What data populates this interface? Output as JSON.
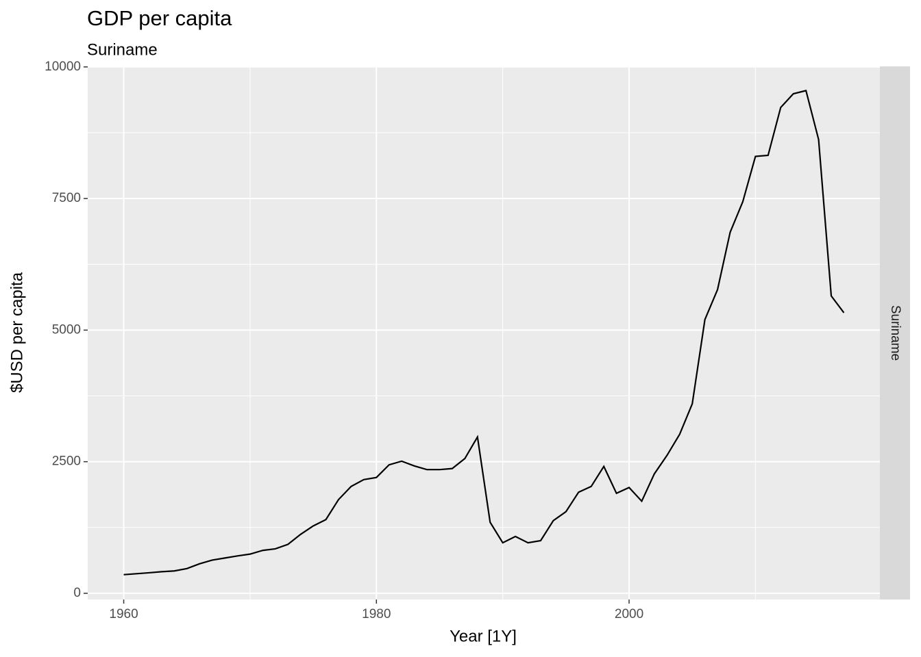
{
  "chart_data": {
    "type": "line",
    "title": "GDP per capita",
    "subtitle": "Suriname",
    "facet_label": "Suriname",
    "x_label": "Year [1Y]",
    "y_label": "$USD per capita",
    "x": [
      1960,
      1961,
      1962,
      1963,
      1964,
      1965,
      1966,
      1967,
      1968,
      1969,
      1970,
      1971,
      1972,
      1973,
      1974,
      1975,
      1976,
      1977,
      1978,
      1979,
      1980,
      1981,
      1982,
      1983,
      1984,
      1985,
      1986,
      1987,
      1988,
      1989,
      1990,
      1991,
      1992,
      1993,
      1994,
      1995,
      1996,
      1997,
      1998,
      1999,
      2000,
      2001,
      2002,
      2003,
      2004,
      2005,
      2006,
      2007,
      2008,
      2009,
      2010,
      2011,
      2012,
      2013,
      2014,
      2015,
      2016,
      2017
    ],
    "series": [
      {
        "name": "Suriname",
        "color": "#000000",
        "values": [
          354,
          372,
          390,
          410,
          425,
          470,
          560,
          630,
          670,
          710,
          745,
          815,
          845,
          930,
          1120,
          1280,
          1400,
          1780,
          2030,
          2160,
          2200,
          2440,
          2510,
          2420,
          2350,
          2350,
          2370,
          2560,
          2970,
          1350,
          960,
          1080,
          960,
          1000,
          1380,
          1550,
          1920,
          2030,
          2410,
          1900,
          2010,
          1750,
          2270,
          2620,
          3020,
          3600,
          5200,
          5770,
          6860,
          7440,
          8300,
          8320,
          9230,
          9490,
          9550,
          8620,
          5650,
          5330
        ]
      }
    ],
    "xlim": [
      1957.15,
      2019.85
    ],
    "xticks": [
      1960,
      1980,
      2000
    ],
    "ylim": [
      -118,
      10010
    ],
    "yticks": [
      0,
      2500,
      5000,
      7500,
      10000
    ],
    "grid": true
  }
}
